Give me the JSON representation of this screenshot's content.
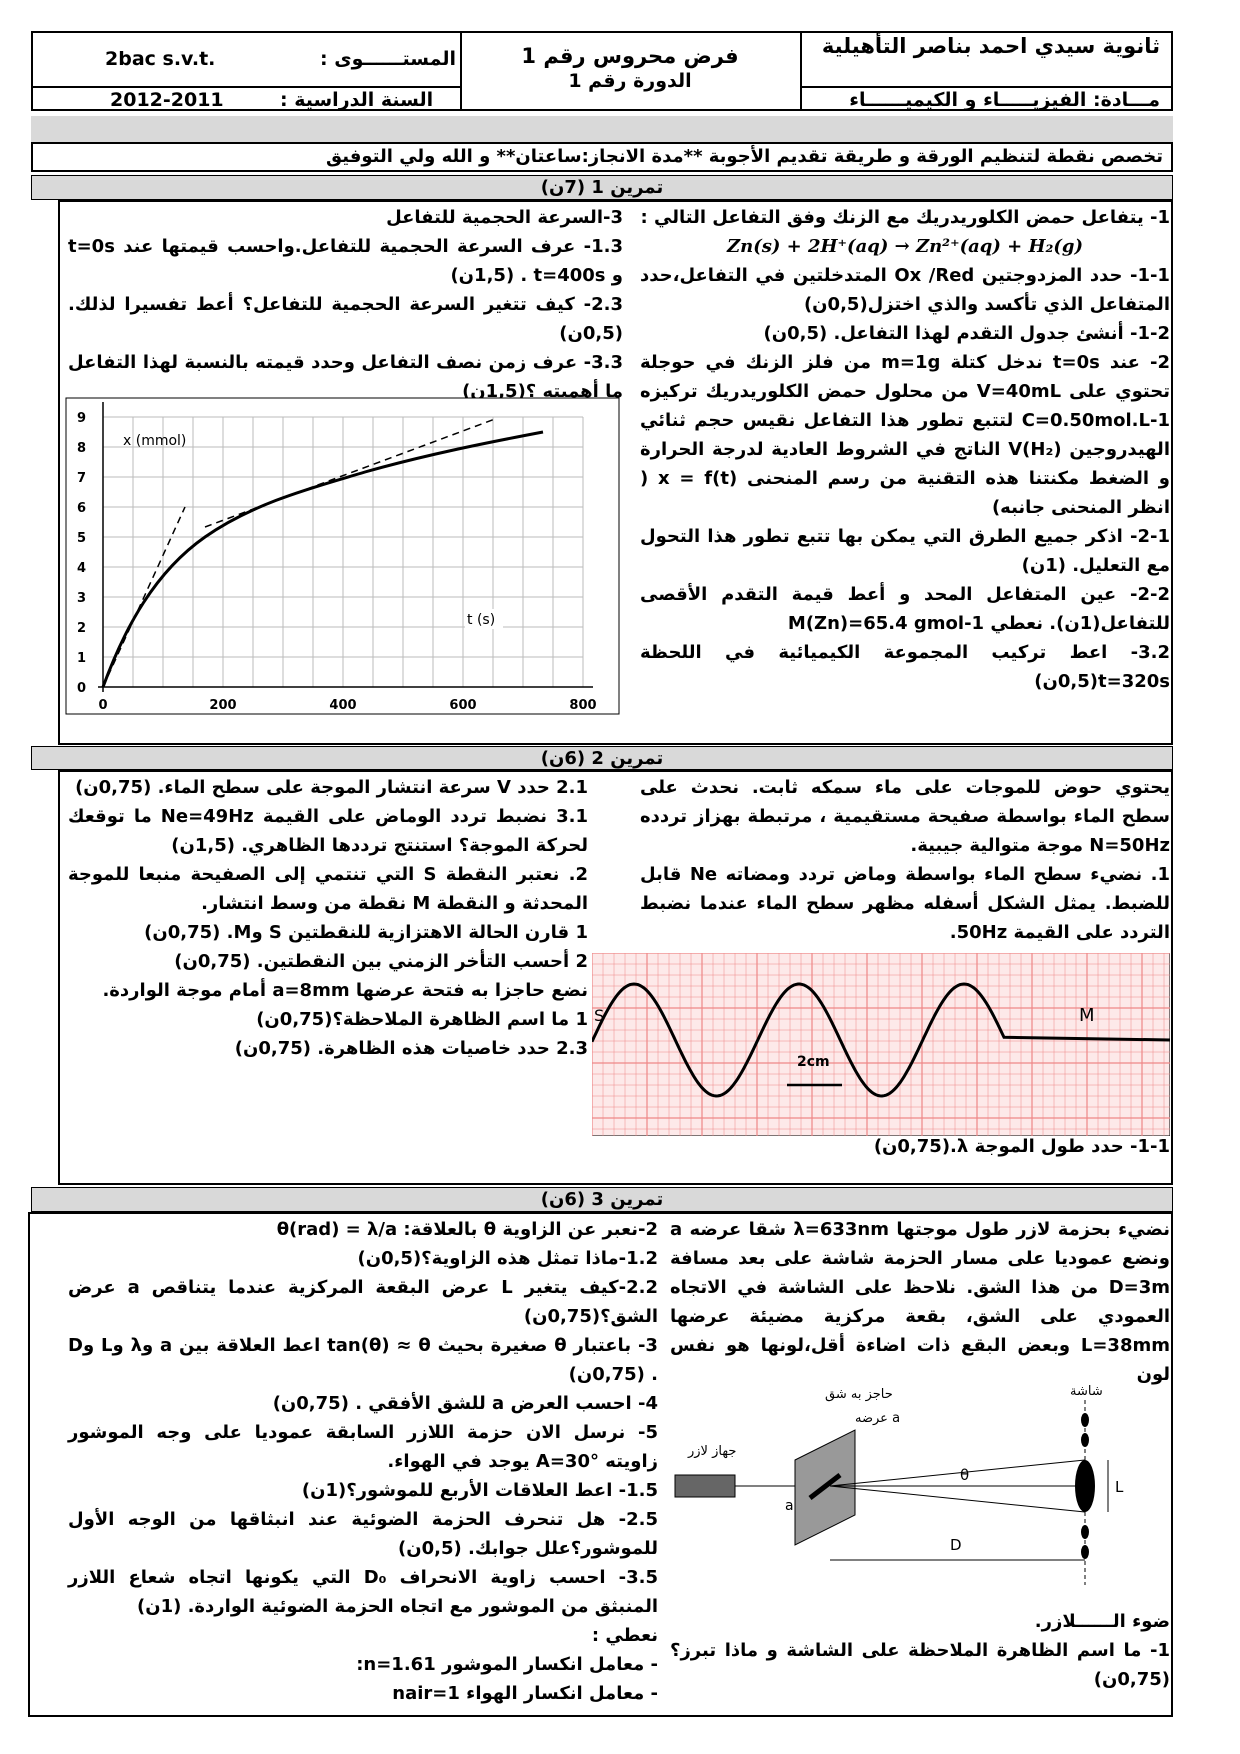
{
  "header": {
    "school": "ثانوية سيدي احمد بناصر التأهيلية",
    "subject": "مـــادة: الفيزيـــــاء و الكيميــــــاء",
    "test": "فرض محروس رقم 1",
    "session": "الدورة رقم 1",
    "level_label": "المستــــــوى :",
    "level": "2bac s.v.t.",
    "year_label": "السنة الدراسية :",
    "year": "2012-2011"
  },
  "instructions": "تخصص نقطة لتنظيم الورقة و طريقة تقديم الأجوبة **مدة الانجاز:ساعتان** و الله ولي التوفيق",
  "exercises": [
    {
      "title": "تمرين 1 (7ن)",
      "right": [
        "1- يتفاعل حمض الكلوريدريك مع الزنك وفق التفاعل التالي :",
        "Zn(s) + 2H⁺(aq) → Zn²⁺(aq) + H₂(g)",
        "1-1- حدد المزدوجتين Ox /Red المتدخلتين في التفاعل،حدد المتفاعل الذي تأكسد والذي اختزل(0,5ن)",
        "1-2- أنشئ جدول التقدم لهذا التفاعل. (0,5ن)",
        "2- عند t=0s ندخل كتلة m=1g من فلز الزنك في حوجلة تحتوي على V=40mL من محلول حمض الكلوريدريك تركيزه C=0.50mol.L-1 لتتبع تطور هذا التفاعل نقيس حجم ثنائي الهيدروجين V(H₂) الناتج في الشروط العادية لدرجة الحرارة و الضغط مكنتنا هذه التقنية من رسم المنحنى x = f(t) ( انظر المنحنى جانبه)",
        "2-1- اذكر جميع الطرق التي يمكن بها تتبع تطور هذا التحول مع التعليل. (1ن)",
        "2-2- عين المتفاعل المحد و أعط قيمة التقدم الأقصى للتفاعل(1ن). نعطي M(Zn)=65.4 gmol-1",
        "3.2- اعط تركيب المجموعة الكيميائية في اللحظة t=320s(0,5ن)"
      ],
      "left": [
        "3-السرعة الحجمية للتفاعل",
        "1.3- عرف السرعة الحجمية للتفاعل.واحسب قيمتها عند t=0s و t=400s . (1,5ن)",
        "2.3- كيف تتغير السرعة الحجمية للتفاعل؟ أعط تفسيرا لذلك. (0,5ن)",
        "3.3- عرف زمن نصف التفاعل وحدد قيمته بالنسبة لهذا التفاعل ما أهميته ؟(1,5ن)"
      ]
    },
    {
      "title": "تمرين 2 (6ن)",
      "right": [
        "يحتوي حوض للموجات على ماء سمكه ثابت. نحدث على سطح الماء بواسطة صفيحة مستقيمية ، مرتبطة بهزاز تردده N=50Hz موجة متوالية جيبية.",
        "1. نضيء سطح الماء بواسطة وماض تردد ومضاته Ne قابل للضبط. يمثل الشكل أسفله مظهر سطح الماء عندما نضبط التردد على القيمة 50Hz."
      ],
      "right_bottom": [
        "1-1- حدد طول الموجة λ.(0,75ن)"
      ],
      "left": [
        "2.1 حدد V سرعة انتشار الموجة على سطح الماء. (0,75ن)",
        "3.1 نضبط تردد الوماض على القيمة Ne=49Hz ما توقعك لحركة الموجة؟ استنتج ترددها الظاهري. (1,5ن)",
        "2. نعتبر النقطة S التي تنتمي إلى الصفيحة منبعا للموجة المحدثة و النقطة M نقطة من وسط انتشار.",
        "1 قارن الحالة الاهتزازية للنقطتين S وM. (0,75ن)",
        "2 أحسب التأخر الزمني بين النقطتين. (0,75ن)",
        "نضع حاجزا به فتحة عرضها a=8mm أمام موجة الواردة.",
        "1 ما اسم الظاهرة الملاحظة؟(0,75ن)",
        "2.3 حدد خاصيات هذه الظاهرة. (0,75ن)"
      ]
    },
    {
      "title": "تمرين 3 (6ن)",
      "right": [
        "نضيء بحزمة لازر طول موجتها λ=633nm شقا عرضه a ونضع عموديا على مسار الحزمة شاشة على بعد مسافة D=3m من هذا الشق. نلاحظ على الشاشة في الاتجاه العمودي على الشق، بقعة مركزية مضيئة عرضها L=38mm وبعض البقع ذات اضاءة أقل،لونها هو نفس لون"
      ],
      "right_bottom": [
        "ضوء الــــــلازر.",
        "1- ما اسم الظاهرة الملاحظة على الشاشة و ماذا تبرز؟(0,75ن)"
      ],
      "left": [
        "2-نعبر عن الزاوية θ بالعلاقة: θ(rad) = λ/a",
        "1.2-ماذا تمثل هذه الزاوية؟(0,5ن)",
        "2.2-كيف يتغير L عرض البقعة المركزية عندما يتناقص a عرض الشق؟(0,75ن)",
        "3- باعتبار θ صغيرة بحيث tan(θ) ≈ θ اعط العلاقة بين a وλ وL وD . (0,75ن)",
        "4- احسب العرض a للشق الأفقي . (0,75ن)",
        "5- نرسل الان حزمة اللازر السابقة عموديا على وجه الموشور زاويته A=30° يوجد في الهواء.",
        "1.5- اعط العلاقات الأربع للموشور؟(1ن)",
        "2.5- هل تنحرف الحزمة الضوئية عند انبثاقها من الوجه الأول للموشور؟علل جوابك. (0,5ن)",
        "3.5- احسب زاوية الانحراف D₀ التي يكونها اتجاه شعاع اللازر المنبثق من الموشور مع اتجاه الحزمة الضوئية الواردة. (1ن)",
        "نعطي :",
        "- معامل انكسار الموشور n=1.61:",
        "- معامل انكسار الهواء nair=1"
      ]
    }
  ],
  "graph": {
    "ylabel": "x (mmol)",
    "xlabel": "t (s)",
    "xticks": [
      "0",
      "200",
      "400",
      "600",
      "800"
    ],
    "yticks": [
      "0",
      "1",
      "2",
      "3",
      "4",
      "5",
      "6",
      "7",
      "8",
      "9"
    ]
  },
  "wave": {
    "source": "S",
    "point": "M",
    "scale": "2cm"
  },
  "diagram": {
    "screen": "شاشة",
    "slit": "حاجز به شق",
    "slit_width": "عرضه a",
    "laser": "جهاز لازر",
    "theta": "θ",
    "width": "L",
    "distance": "D",
    "a": "a"
  }
}
